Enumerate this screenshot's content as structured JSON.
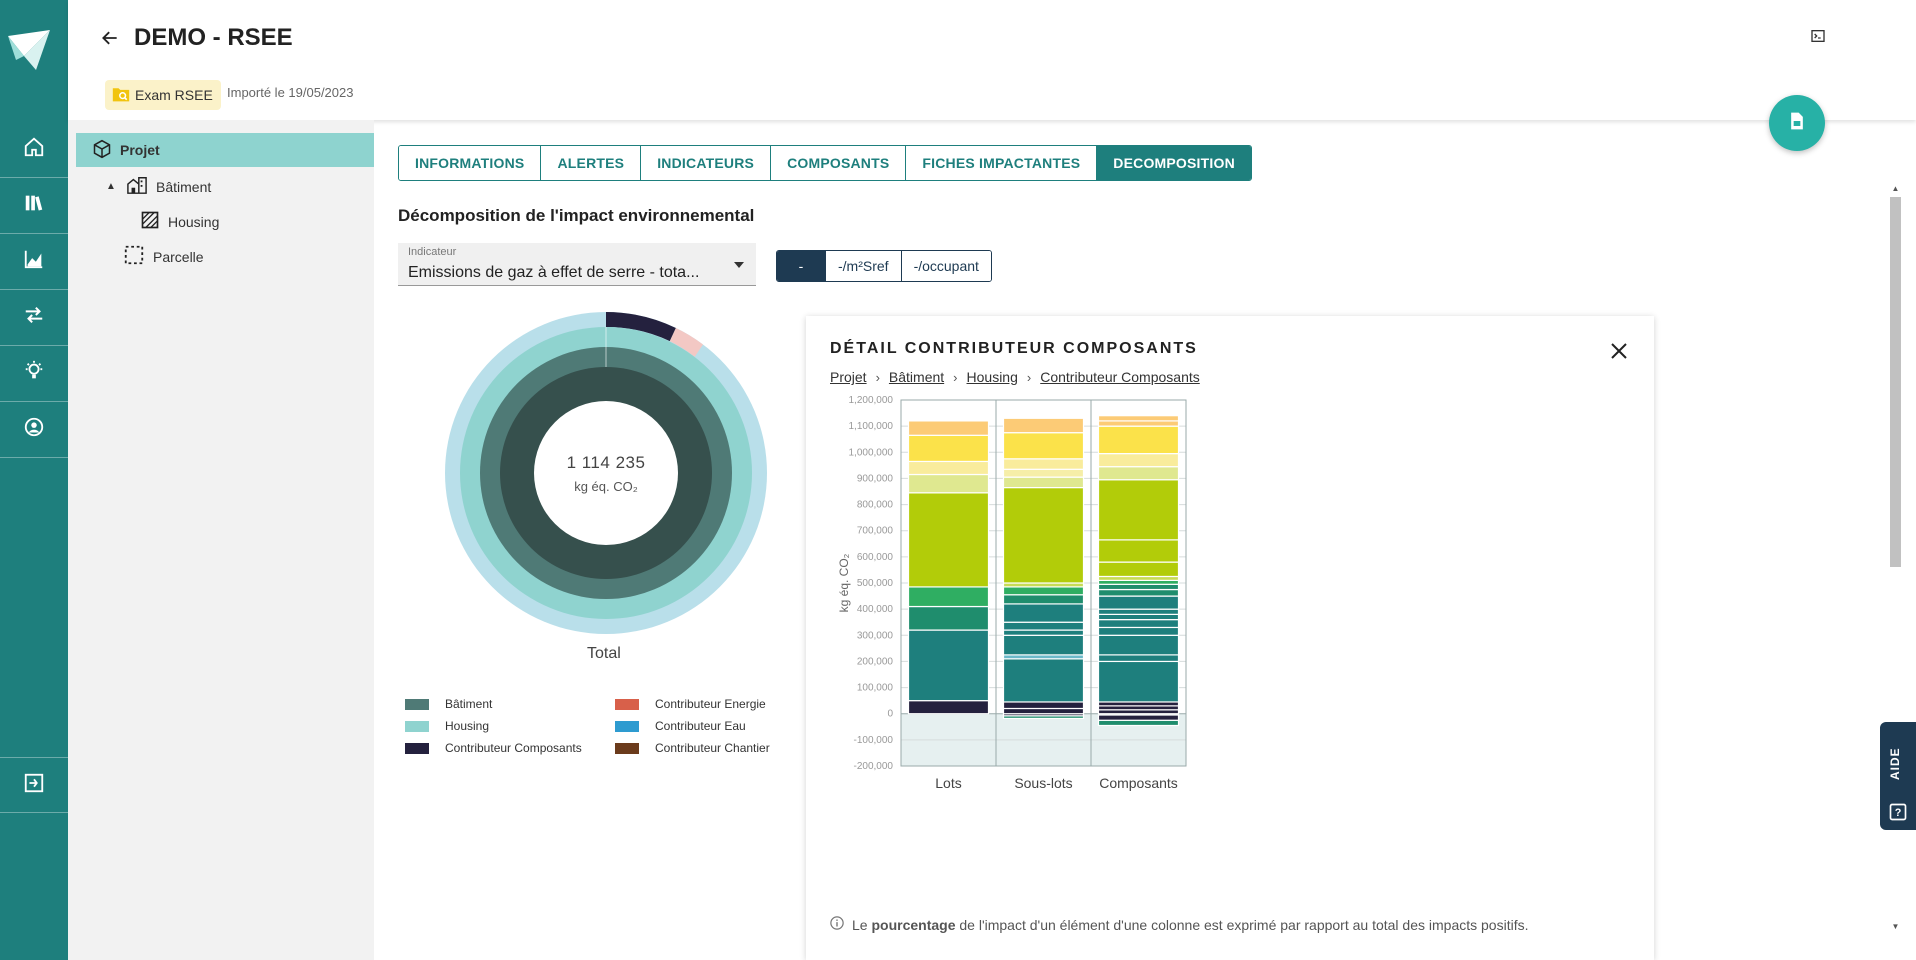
{
  "header": {
    "title": "DEMO - RSEE",
    "badge": "Exam RSEE",
    "imported": "Importé le 19/05/2023"
  },
  "nav": {
    "icons": [
      "home-icon",
      "library-icon",
      "chart-icon",
      "swap-icon",
      "lightbulb-icon",
      "account-icon",
      "logout-icon"
    ]
  },
  "tree": {
    "projet": "Projet",
    "batiment": "Bâtiment",
    "housing": "Housing",
    "parcelle": "Parcelle"
  },
  "tabs": [
    "INFORMATIONS",
    "ALERTES",
    "INDICATEURS",
    "COMPOSANTS",
    "FICHES IMPACTANTES",
    "DECOMPOSITION"
  ],
  "active_tab": "DECOMPOSITION",
  "section_title": "Décomposition de l'impact environnemental",
  "indicator": {
    "label": "Indicateur",
    "value": "Emissions de gaz à effet de serre - tota..."
  },
  "units_toggle": [
    "-",
    "-/m²Sref",
    "-/occupant"
  ],
  "donut": {
    "value": "1 114 235",
    "unit": "kg éq. CO₂",
    "caption": "Total"
  },
  "legend": [
    {
      "label": "Bâtiment",
      "color": "#4f7a76"
    },
    {
      "label": "Contributeur Energie",
      "color": "#d8604a"
    },
    {
      "label": "Housing",
      "color": "#8fd3cf"
    },
    {
      "label": "Contributeur Eau",
      "color": "#2e9bd0"
    },
    {
      "label": "Contributeur Composants",
      "color": "#24213e"
    },
    {
      "label": "Contributeur Chantier",
      "color": "#6b3b1c"
    }
  ],
  "panel": {
    "title": "DÉTAIL CONTRIBUTEUR COMPOSANTS",
    "breadcrumb": [
      "Projet",
      "Bâtiment",
      "Housing",
      "Contributeur Composants"
    ],
    "note_before": "Le ",
    "note_bold": "pourcentage",
    "note_after": " de l'impact d'un élément d'une colonne est exprimé par rapport au total des impacts positifs."
  },
  "aide_label": "AIDE",
  "chart_data": {
    "type": "bar",
    "stacked": true,
    "ylabel": "kg éq. CO₂",
    "ylim": [
      -200000,
      1200000
    ],
    "yticks": [
      "1,200,000",
      "1,100,000",
      "1,000,000",
      "900,000",
      "800,000",
      "700,000",
      "600,000",
      "500,000",
      "400,000",
      "300,000",
      "200,000",
      "100,000",
      "0",
      "-100,000",
      "-200,000"
    ],
    "categories": [
      "Lots",
      "Sous-lots",
      "Composants"
    ],
    "columns": [
      {
        "name": "Lots",
        "segments": [
          {
            "from": 0,
            "to": 50000,
            "color": "#24213e"
          },
          {
            "from": 50000,
            "to": 320000,
            "color": "#1e7f7d"
          },
          {
            "from": 320000,
            "to": 410000,
            "color": "#1f8d6d"
          },
          {
            "from": 410000,
            "to": 485000,
            "color": "#2fae62"
          },
          {
            "from": 485000,
            "to": 845000,
            "color": "#b2cc09"
          },
          {
            "from": 845000,
            "to": 915000,
            "color": "#dfe890"
          },
          {
            "from": 915000,
            "to": 965000,
            "color": "#f9ec9c"
          },
          {
            "from": 965000,
            "to": 1065000,
            "color": "#fbe24a"
          },
          {
            "from": 1065000,
            "to": 1120000,
            "color": "#fccb76"
          }
        ]
      },
      {
        "name": "Sous-lots",
        "segments": [
          {
            "from": -18000,
            "to": -8000,
            "color": "#1f8d6d"
          },
          {
            "from": -8000,
            "to": 0,
            "color": "#24213e"
          },
          {
            "from": 0,
            "to": 20000,
            "color": "#24213e"
          },
          {
            "from": 20000,
            "to": 45000,
            "color": "#24213e"
          },
          {
            "from": 45000,
            "to": 210000,
            "color": "#1e7f7d"
          },
          {
            "from": 210000,
            "to": 225000,
            "color": "#6ab9c9"
          },
          {
            "from": 225000,
            "to": 300000,
            "color": "#1e7f7d"
          },
          {
            "from": 300000,
            "to": 320000,
            "color": "#1e7f7d"
          },
          {
            "from": 320000,
            "to": 350000,
            "color": "#1e7f7d"
          },
          {
            "from": 350000,
            "to": 420000,
            "color": "#1e7f7d"
          },
          {
            "from": 420000,
            "to": 455000,
            "color": "#1f8d6d"
          },
          {
            "from": 455000,
            "to": 485000,
            "color": "#2fae62"
          },
          {
            "from": 485000,
            "to": 500000,
            "color": "#c7db55"
          },
          {
            "from": 500000,
            "to": 865000,
            "color": "#b2cc09"
          },
          {
            "from": 865000,
            "to": 905000,
            "color": "#dfe890"
          },
          {
            "from": 905000,
            "to": 935000,
            "color": "#f6eea8"
          },
          {
            "from": 935000,
            "to": 975000,
            "color": "#f9ec9c"
          },
          {
            "from": 975000,
            "to": 1075000,
            "color": "#fbe24a"
          },
          {
            "from": 1075000,
            "to": 1130000,
            "color": "#fccb76"
          }
        ]
      },
      {
        "name": "Composants",
        "segments": [
          {
            "from": -45000,
            "to": -25000,
            "color": "#1f8d6d"
          },
          {
            "from": -25000,
            "to": -5000,
            "color": "#24213e"
          },
          {
            "from": 0,
            "to": 15000,
            "color": "#24213e"
          },
          {
            "from": 15000,
            "to": 30000,
            "color": "#24213e"
          },
          {
            "from": 30000,
            "to": 45000,
            "color": "#24213e"
          },
          {
            "from": 45000,
            "to": 200000,
            "color": "#1e7f7d"
          },
          {
            "from": 200000,
            "to": 225000,
            "color": "#1e7f7d"
          },
          {
            "from": 225000,
            "to": 300000,
            "color": "#1e7f7d"
          },
          {
            "from": 300000,
            "to": 330000,
            "color": "#1e7f7d"
          },
          {
            "from": 330000,
            "to": 360000,
            "color": "#1e7f7d"
          },
          {
            "from": 360000,
            "to": 380000,
            "color": "#1e7f7d"
          },
          {
            "from": 380000,
            "to": 400000,
            "color": "#1e7f7d"
          },
          {
            "from": 400000,
            "to": 450000,
            "color": "#1e7f7d"
          },
          {
            "from": 450000,
            "to": 475000,
            "color": "#1f8d6d"
          },
          {
            "from": 475000,
            "to": 495000,
            "color": "#1f8d6d"
          },
          {
            "from": 495000,
            "to": 510000,
            "color": "#2fae62"
          },
          {
            "from": 510000,
            "to": 525000,
            "color": "#c7db55"
          },
          {
            "from": 525000,
            "to": 580000,
            "color": "#b2cc09"
          },
          {
            "from": 580000,
            "to": 665000,
            "color": "#b2cc09"
          },
          {
            "from": 665000,
            "to": 895000,
            "color": "#b2cc09"
          },
          {
            "from": 895000,
            "to": 945000,
            "color": "#dfe890"
          },
          {
            "from": 945000,
            "to": 995000,
            "color": "#f9ec9c"
          },
          {
            "from": 995000,
            "to": 1100000,
            "color": "#fbe24a"
          },
          {
            "from": 1100000,
            "to": 1120000,
            "color": "#fccb76"
          },
          {
            "from": 1120000,
            "to": 1140000,
            "color": "#fccb76"
          }
        ]
      }
    ]
  }
}
